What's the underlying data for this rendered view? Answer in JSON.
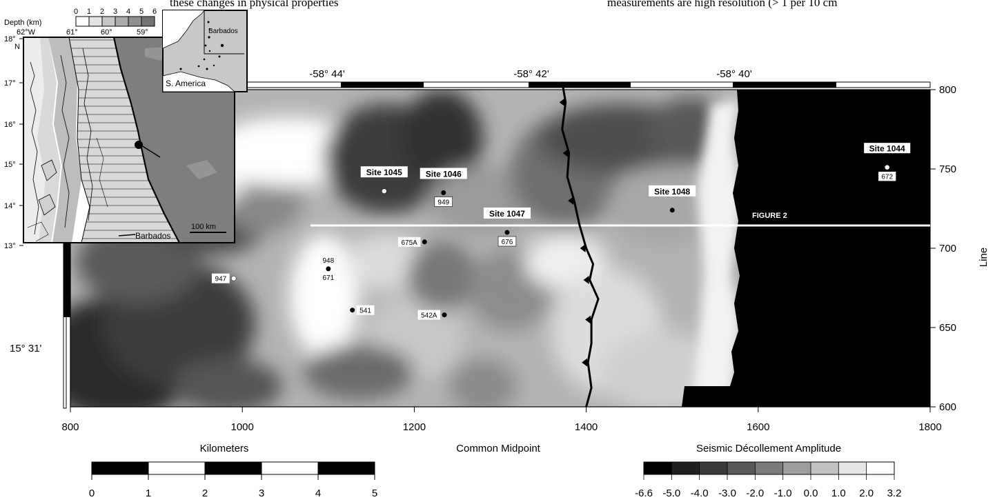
{
  "page_text": {
    "left_fragment": "these changes in physical properties",
    "right_fragment": "measurements are high resolution (> 1 per 10 cm"
  },
  "main_map": {
    "longitude_labels": [
      "-58° 44'",
      "-58° 42'",
      "-58° 40'"
    ],
    "latitude_label": "15° 31'",
    "cmp_ticks": [
      "800",
      "1000",
      "1200",
      "1400",
      "1600",
      "1800"
    ],
    "line_ticks": [
      "800",
      "750",
      "700",
      "650",
      "600"
    ],
    "x_axis_title": "Common Midpoint",
    "y_axis_title": "Line",
    "figure_line_label": "FIGURE 2",
    "frontal_thrust_points": [
      [
        1372,
        805
      ],
      [
        1376,
        792
      ],
      [
        1372,
        775
      ],
      [
        1380,
        760
      ],
      [
        1378,
        745
      ],
      [
        1386,
        730
      ],
      [
        1392,
        715
      ],
      [
        1400,
        700
      ],
      [
        1408,
        690
      ],
      [
        1404,
        680
      ],
      [
        1414,
        668
      ],
      [
        1406,
        655
      ],
      [
        1406,
        640
      ],
      [
        1402,
        628
      ],
      [
        1406,
        612
      ],
      [
        1400,
        600
      ]
    ],
    "sites": [
      {
        "label": "Site 1045",
        "cmp": 1165,
        "line": 736,
        "dot": "white",
        "boxed": true
      },
      {
        "label": "Site 1046",
        "cmp": 1234,
        "line": 735,
        "dot": "black",
        "boxed": true,
        "sub": "949"
      },
      {
        "label": "Site 1047",
        "cmp": 1308,
        "line": 710,
        "dot": "black",
        "boxed": true,
        "sub": "676"
      },
      {
        "label": "Site 1048",
        "cmp": 1500,
        "line": 724,
        "dot": "black",
        "boxed": true
      },
      {
        "label": "Site 1044",
        "cmp": 1750,
        "line": 751,
        "dot": "white",
        "boxed": true,
        "sub": "672",
        "inverse": true
      }
    ],
    "minor_sites": [
      {
        "label": "675A",
        "cmp": 1212,
        "line": 704,
        "side": "left"
      },
      {
        "label": "948",
        "cmp": 1100,
        "line": 687,
        "side": "above",
        "sub": "671"
      },
      {
        "label": "947",
        "cmp": 990,
        "line": 681,
        "side": "left",
        "dot": "white"
      },
      {
        "label": "541",
        "cmp": 1128,
        "line": 661,
        "side": "right"
      },
      {
        "label": "542A",
        "cmp": 1235,
        "line": 658,
        "side": "left"
      }
    ]
  },
  "inset_map": {
    "depth_legend_title": "Depth (km)",
    "depth_values": [
      "0",
      "1",
      "2",
      "3",
      "4",
      "5",
      "6"
    ],
    "longitude_labels": [
      "62°W",
      "61°",
      "60°",
      "59°"
    ],
    "latitude_labels": [
      "18°",
      "17°",
      "16°",
      "15°",
      "14°",
      "13°"
    ],
    "north_label": "N",
    "scale_label": "100 km",
    "barbados_label": "Barbados"
  },
  "locator_map": {
    "barbados_label": "Barbados",
    "south_america_label": "S. America"
  },
  "distance_scale": {
    "title": "Kilometers",
    "ticks": [
      "0",
      "1",
      "2",
      "3",
      "4",
      "5"
    ]
  },
  "amplitude_scale": {
    "title": "Seismic Décollement Amplitude",
    "ticks": [
      "-6.6",
      "-5.0",
      "-4.0",
      "-3.0",
      "-2.0",
      "-1.0",
      "0.0",
      "1.0",
      "2.0",
      "3.2"
    ],
    "colors": [
      "#000000",
      "#202020",
      "#3a3a3a",
      "#585858",
      "#7a7a7a",
      "#9d9d9d",
      "#c2c2c2",
      "#e6e6e6",
      "#ffffff"
    ]
  }
}
